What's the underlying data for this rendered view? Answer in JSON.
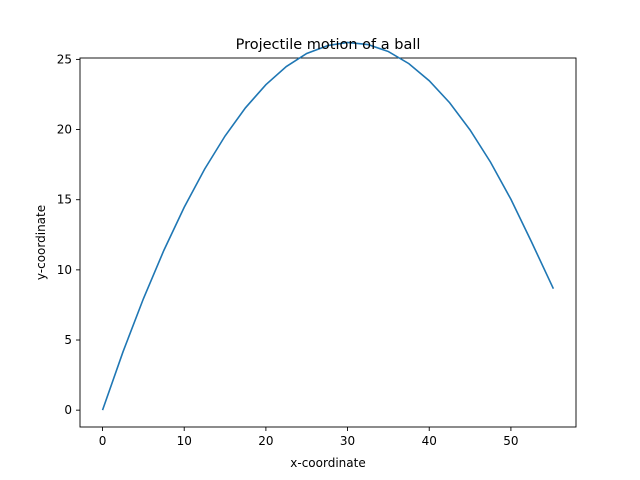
{
  "chart_data": {
    "type": "line",
    "title": "Projectile motion of a ball",
    "xlabel": "x-coordinate",
    "ylabel": "y-coordinate",
    "xlim": [
      -2.76,
      57.97
    ],
    "ylim": [
      -1.2,
      25.1
    ],
    "xticks": [
      0,
      10,
      20,
      30,
      40,
      50
    ],
    "yticks": [
      0,
      5,
      10,
      15,
      20,
      25
    ],
    "grid": false,
    "series": [
      {
        "color": "#1f77b4",
        "x": [
          0,
          2.5,
          5,
          7.5,
          10,
          12.5,
          15,
          17.5,
          20,
          22.5,
          25,
          27.6,
          30,
          32.5,
          35,
          37.5,
          40,
          42.5,
          45,
          47.5,
          50,
          52.5,
          55.2
        ],
        "y": [
          0,
          4.15,
          7.94,
          11.38,
          14.46,
          17.18,
          19.54,
          21.55,
          23.2,
          24.49,
          25.42,
          25.99,
          26.21,
          26.06,
          25.56,
          24.7,
          23.48,
          21.91,
          19.97,
          17.68,
          15.03,
          12.02,
          8.66
        ]
      }
    ]
  }
}
